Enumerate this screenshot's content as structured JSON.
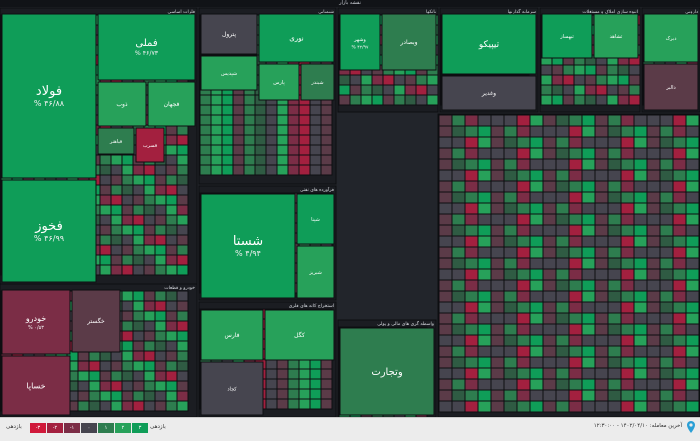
{
  "map_title": "نقشه بازار",
  "colors": {
    "frame": "#1b1d22",
    "pos3": "#0f9d58",
    "pos2": "#27a15a",
    "pos1": "#2e7d4f",
    "pos0": "#2f5b43",
    "zero": "#46454f",
    "neg0": "#5b3b48",
    "neg1": "#7b2d46",
    "neg2": "#a3203f",
    "neg3": "#d0193a"
  },
  "footer": {
    "timestamp": "آخرین معامله: ۱۴۰۲/۰۴/۱۰ - ۱۲:۳۰:۰۰",
    "legend_left_word": "بازدهی",
    "legend_right_word": "بازدهی",
    "legend": [
      {
        "label": "-۳",
        "color": "#d0193a"
      },
      {
        "label": "-۲",
        "color": "#a3203f"
      },
      {
        "label": "-۱",
        "color": "#7b2d46"
      },
      {
        "label": "۰",
        "color": "#46454f"
      },
      {
        "label": "۱",
        "color": "#2e7d4f"
      },
      {
        "label": "۲",
        "color": "#27a15a"
      },
      {
        "label": "۳",
        "color": "#0f9d58"
      }
    ]
  },
  "chart_data": {
    "type": "heatmap",
    "title": "نقشه بازار",
    "sectors": [
      {
        "name": "فلزات اساسی",
        "tiles": [
          {
            "name": "فولاد",
            "value": "% ۴۶/۸۸",
            "color": "pos3"
          },
          {
            "name": "فملی",
            "value": "% ۴۶/۷۳",
            "color": "pos3"
          },
          {
            "name": "فخوز",
            "value": "% ۴۶/۹۹",
            "color": "pos3"
          },
          {
            "name": "ذوب",
            "value": "",
            "color": "pos2"
          },
          {
            "name": "فجهان",
            "value": "",
            "color": "pos2"
          },
          {
            "name": "فباهنر",
            "value": "",
            "color": "pos1"
          },
          {
            "name": "فسرب",
            "value": "",
            "color": "neg2"
          }
        ]
      },
      {
        "name": "شیمیایی",
        "tiles": [
          {
            "name": "پترول",
            "value": "",
            "color": "zero"
          },
          {
            "name": "نوری",
            "value": "",
            "color": "pos3"
          },
          {
            "name": "شپدیس",
            "value": "",
            "color": "pos2"
          },
          {
            "name": "پارس",
            "value": "",
            "color": "pos2"
          },
          {
            "name": "شبندر",
            "value": "",
            "color": "pos1"
          }
        ]
      },
      {
        "name": "فرآورده های نفتی",
        "tiles": [
          {
            "name": "شستا",
            "value": "% ۴/۹۴",
            "color": "pos3"
          },
          {
            "name": "شپنا",
            "value": "",
            "color": "pos3"
          },
          {
            "name": "شبریز",
            "value": "",
            "color": "pos2"
          }
        ]
      },
      {
        "name": "خودرو و قطعات",
        "tiles": [
          {
            "name": "خودرو",
            "value": "% ۰/۵۳",
            "color": "neg1"
          },
          {
            "name": "خساپا",
            "value": "",
            "color": "neg1"
          },
          {
            "name": "خگستر",
            "value": "",
            "color": "neg0"
          }
        ]
      },
      {
        "name": "واسطه گری های مالی و پولی",
        "tiles": [
          {
            "name": "وتجارت",
            "value": "",
            "color": "pos1"
          },
          {
            "name": "وبملت",
            "value": "",
            "color": "pos2"
          }
        ]
      },
      {
        "name": "استخراج کانه های فلزی",
        "tiles": [
          {
            "name": "فارس",
            "value": "",
            "color": "pos2"
          },
          {
            "name": "کگل",
            "value": "",
            "color": "pos2"
          },
          {
            "name": "کچاد",
            "value": "",
            "color": "zero"
          }
        ]
      },
      {
        "name": "بانکها",
        "tiles": [
          {
            "name": "وشهر",
            "value": "% ۴۲/۹۷",
            "color": "pos3"
          },
          {
            "name": "وبصادر",
            "value": "",
            "color": "pos1"
          }
        ]
      },
      {
        "name": "سرمایه گذاریها",
        "tiles": [
          {
            "name": "تیپیکو",
            "value": "",
            "color": "pos3"
          },
          {
            "name": "وغدیر",
            "value": "",
            "color": "zero"
          },
          {
            "name": "شاخص",
            "value": "",
            "color": "neg2"
          }
        ]
      },
      {
        "name": "انبوه سازی املاک و مستغلات",
        "tiles": [
          {
            "name": "ثبهساز",
            "value": "",
            "color": "pos3"
          },
          {
            "name": "ثشاهد",
            "value": "",
            "color": "pos2"
          }
        ]
      },
      {
        "name": "دارویی",
        "tiles": [
          {
            "name": "دبرک",
            "value": "",
            "color": "pos2"
          },
          {
            "name": "دالبر",
            "value": "",
            "color": "neg0"
          }
        ]
      }
    ]
  }
}
